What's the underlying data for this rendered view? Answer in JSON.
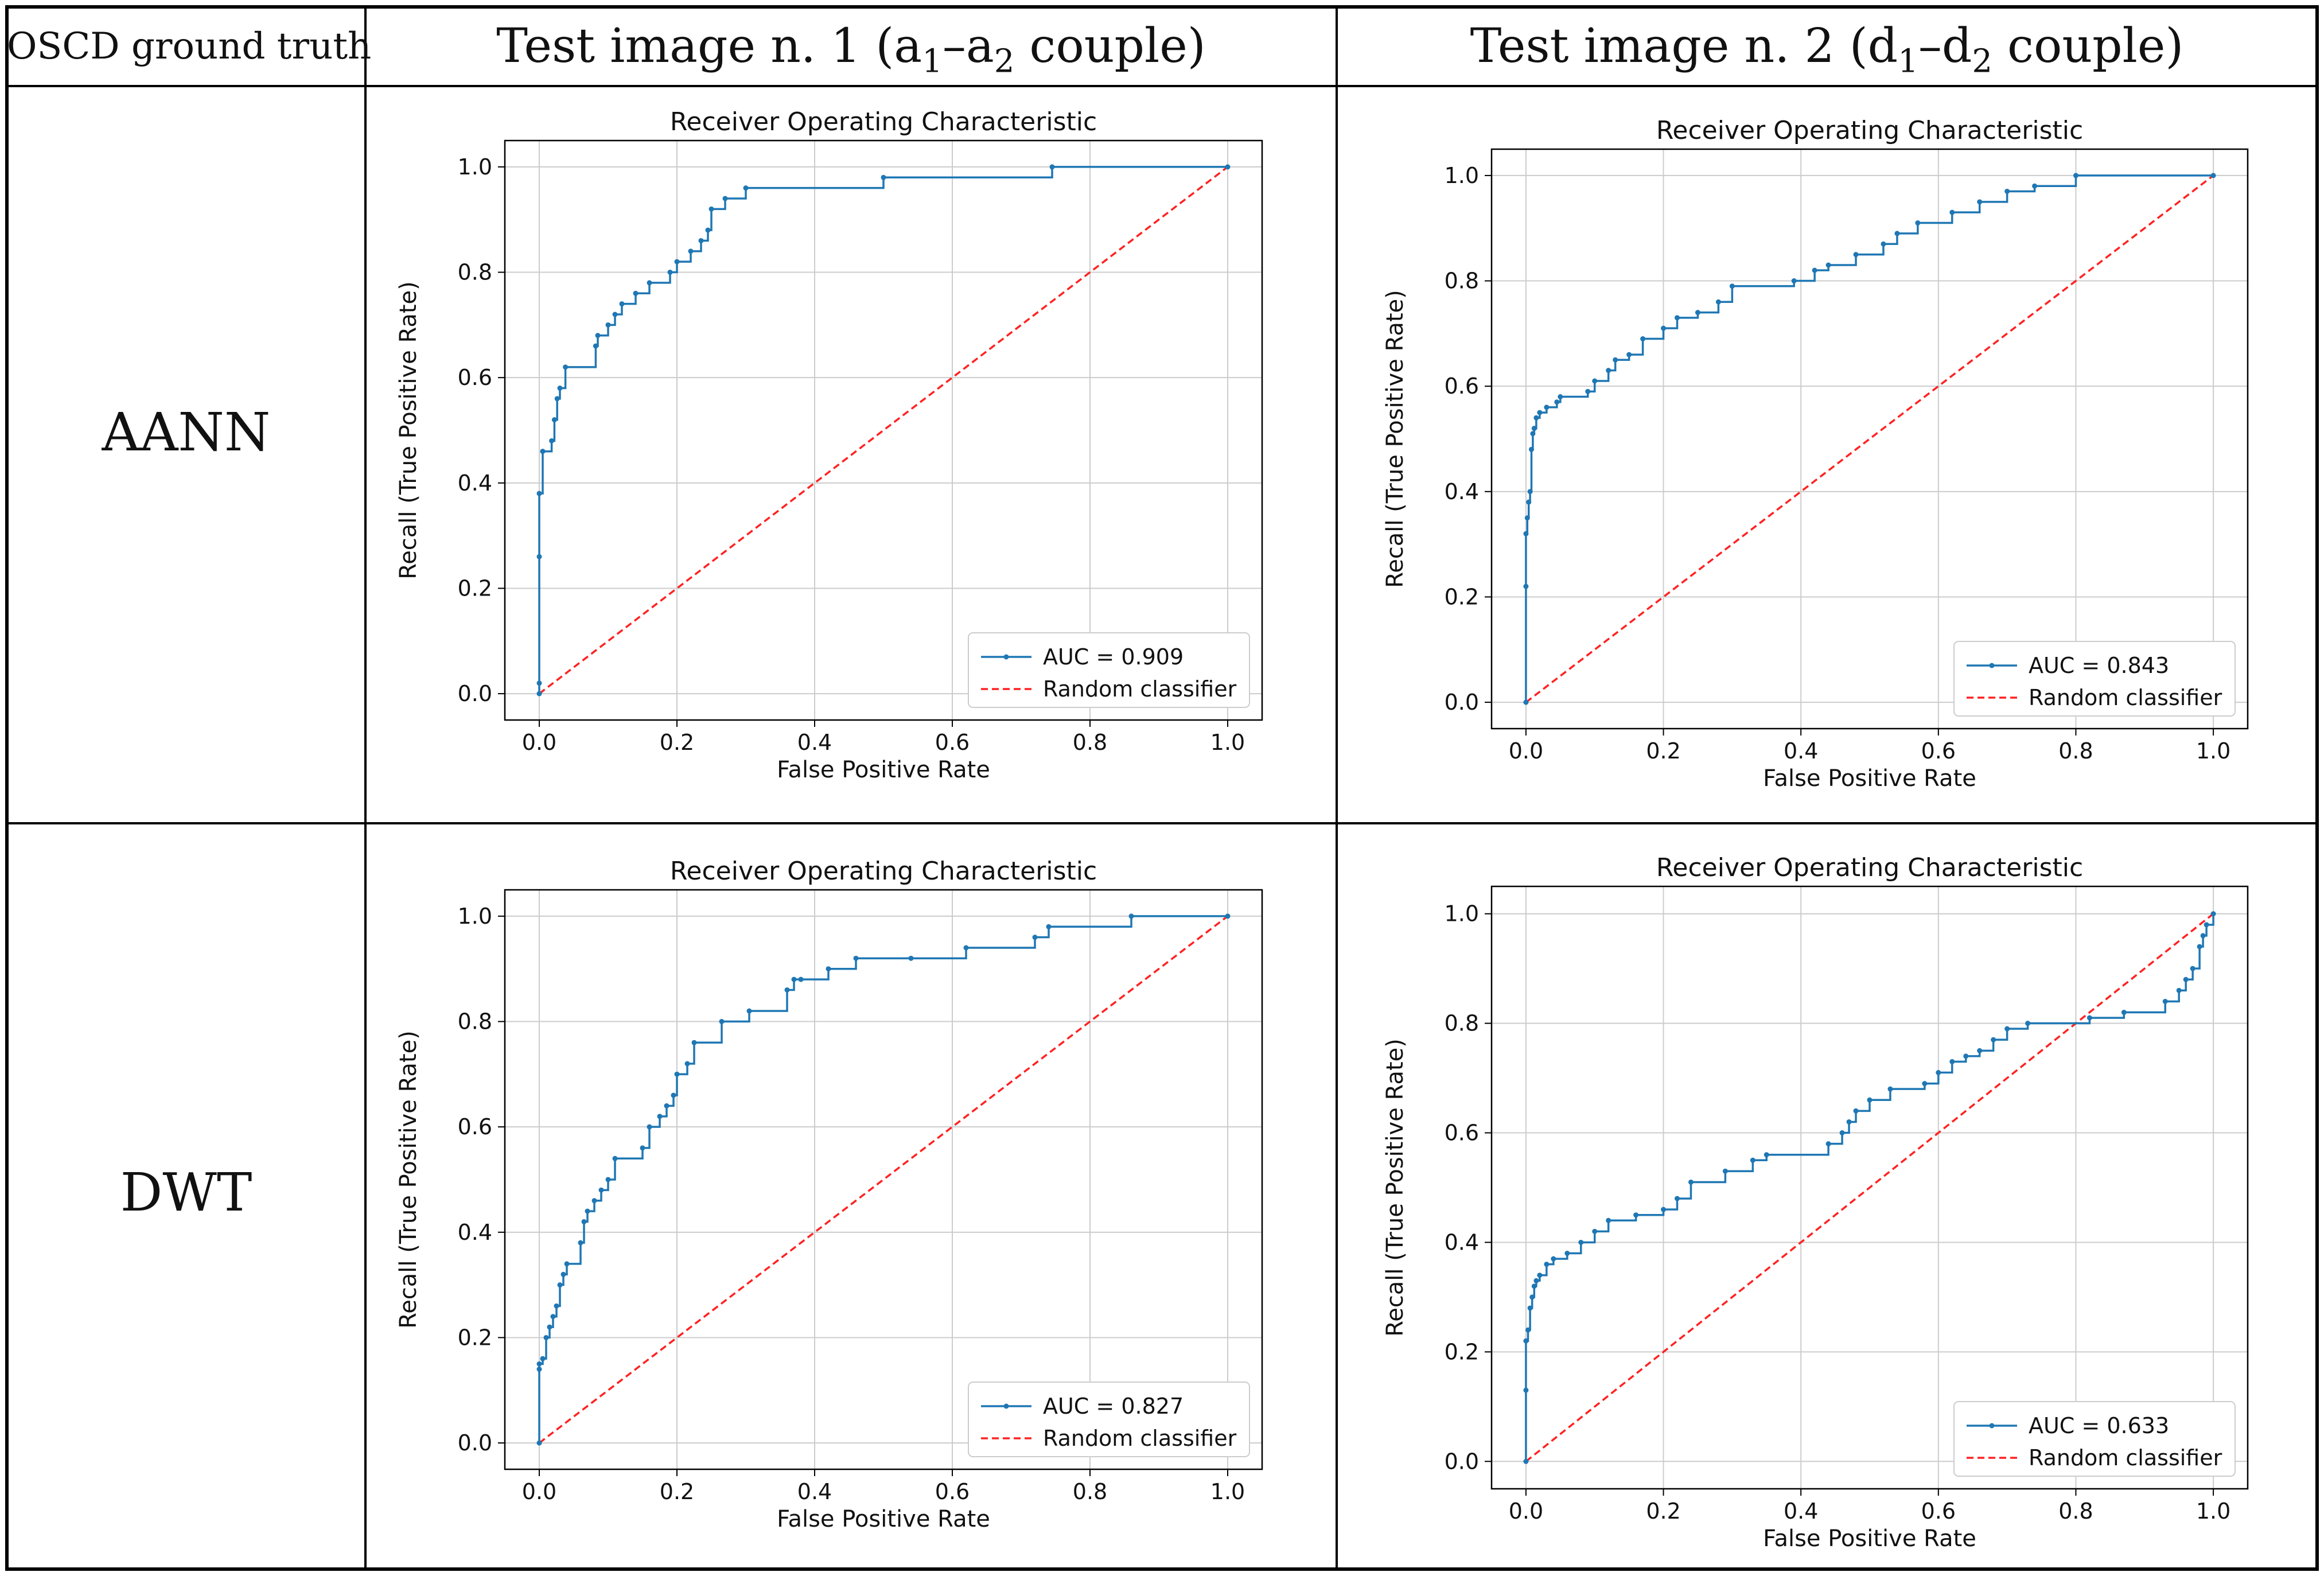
{
  "header": {
    "col0": "OSCD ground truth",
    "col1": {
      "prefix": "Test image n. 1 (a",
      "s1": "1",
      "dash": "–a",
      "s2": "2",
      "suffix": " couple)"
    },
    "col2": {
      "prefix": "Test image n. 2 (d",
      "s1": "1",
      "dash": "–d",
      "s2": "2",
      "suffix": " couple)"
    }
  },
  "rows": [
    "AANN",
    "DWT"
  ],
  "colors": {
    "roc": "#1f77b4",
    "random": "#ff2222",
    "grid": "#cccccc",
    "border": "#000000"
  },
  "chart_data": [
    {
      "type": "line",
      "id": "aann-test1",
      "title": "Receiver Operating Characteristic",
      "xlabel": "False Positive Rate",
      "ylabel": "Recall (True Positive Rate)",
      "xlim": [
        -0.05,
        1.05
      ],
      "ylim": [
        -0.05,
        1.05
      ],
      "xticks": [
        "0.0",
        "0.2",
        "0.4",
        "0.6",
        "0.8",
        "1.0"
      ],
      "yticks": [
        "0.0",
        "0.2",
        "0.4",
        "0.6",
        "0.8",
        "1.0"
      ],
      "grid": true,
      "legend": "bottom-right",
      "series": [
        {
          "name": "AUC = 0.909",
          "style": "step",
          "x": [
            0,
            0,
            0,
            0,
            0.005,
            0.005,
            0.018,
            0.022,
            0.026,
            0.03,
            0.038,
            0.082,
            0.085,
            0.1,
            0.11,
            0.12,
            0.14,
            0.16,
            0.19,
            0.2,
            0.22,
            0.235,
            0.245,
            0.25,
            0.27,
            0.3,
            0.5,
            0.745,
            1.0
          ],
          "y": [
            0,
            0.02,
            0.26,
            0.38,
            0.46,
            0.46,
            0.48,
            0.52,
            0.56,
            0.58,
            0.62,
            0.66,
            0.68,
            0.7,
            0.72,
            0.74,
            0.76,
            0.78,
            0.8,
            0.82,
            0.84,
            0.86,
            0.88,
            0.92,
            0.94,
            0.96,
            0.98,
            1.0,
            1.0
          ]
        },
        {
          "name": "Random classifier",
          "style": "dashed",
          "x": [
            0,
            1
          ],
          "y": [
            0,
            1
          ]
        }
      ]
    },
    {
      "type": "line",
      "id": "aann-test2",
      "title": "Receiver Operating Characteristic",
      "xlabel": "False Positive Rate",
      "ylabel": "Recall (True Positive Rate)",
      "xlim": [
        -0.05,
        1.05
      ],
      "ylim": [
        -0.05,
        1.05
      ],
      "xticks": [
        "0.0",
        "0.2",
        "0.4",
        "0.6",
        "0.8",
        "1.0"
      ],
      "yticks": [
        "0.0",
        "0.2",
        "0.4",
        "0.6",
        "0.8",
        "1.0"
      ],
      "grid": true,
      "legend": "bottom-right",
      "series": [
        {
          "name": "AUC = 0.843",
          "style": "step",
          "x": [
            0,
            0,
            0,
            0.002,
            0.004,
            0.006,
            0.008,
            0.01,
            0.012,
            0.015,
            0.02,
            0.03,
            0.045,
            0.05,
            0.09,
            0.1,
            0.12,
            0.13,
            0.15,
            0.17,
            0.2,
            0.22,
            0.25,
            0.28,
            0.3,
            0.39,
            0.42,
            0.44,
            0.48,
            0.52,
            0.54,
            0.57,
            0.62,
            0.66,
            0.7,
            0.74,
            0.8,
            1.0
          ],
          "y": [
            0,
            0.22,
            0.32,
            0.35,
            0.38,
            0.4,
            0.48,
            0.51,
            0.52,
            0.54,
            0.55,
            0.56,
            0.57,
            0.58,
            0.59,
            0.61,
            0.63,
            0.65,
            0.66,
            0.69,
            0.71,
            0.73,
            0.74,
            0.76,
            0.79,
            0.8,
            0.82,
            0.83,
            0.85,
            0.87,
            0.89,
            0.91,
            0.93,
            0.95,
            0.97,
            0.98,
            1.0,
            1.0
          ]
        },
        {
          "name": "Random classifier",
          "style": "dashed",
          "x": [
            0,
            1
          ],
          "y": [
            0,
            1
          ]
        }
      ]
    },
    {
      "type": "line",
      "id": "dwt-test1",
      "title": "Receiver Operating Characteristic",
      "xlabel": "False Positive Rate",
      "ylabel": "Recall (True Positive Rate)",
      "xlim": [
        -0.05,
        1.05
      ],
      "ylim": [
        -0.05,
        1.05
      ],
      "xticks": [
        "0.0",
        "0.2",
        "0.4",
        "0.6",
        "0.8",
        "1.0"
      ],
      "yticks": [
        "0.0",
        "0.2",
        "0.4",
        "0.6",
        "0.8",
        "1.0"
      ],
      "grid": true,
      "legend": "bottom-right",
      "series": [
        {
          "name": "AUC = 0.827",
          "style": "step",
          "x": [
            0,
            0,
            0,
            0.005,
            0.01,
            0.015,
            0.02,
            0.025,
            0.03,
            0.035,
            0.04,
            0.06,
            0.065,
            0.07,
            0.08,
            0.09,
            0.1,
            0.11,
            0.15,
            0.16,
            0.175,
            0.185,
            0.195,
            0.2,
            0.215,
            0.225,
            0.265,
            0.305,
            0.36,
            0.37,
            0.38,
            0.42,
            0.46,
            0.54,
            0.62,
            0.72,
            0.74,
            0.86,
            1.0
          ],
          "y": [
            0,
            0.14,
            0.15,
            0.16,
            0.2,
            0.22,
            0.24,
            0.26,
            0.3,
            0.32,
            0.34,
            0.38,
            0.42,
            0.44,
            0.46,
            0.48,
            0.5,
            0.54,
            0.56,
            0.6,
            0.62,
            0.64,
            0.66,
            0.7,
            0.72,
            0.76,
            0.8,
            0.82,
            0.86,
            0.88,
            0.88,
            0.9,
            0.92,
            0.92,
            0.94,
            0.96,
            0.98,
            1.0,
            1.0
          ]
        },
        {
          "name": "Random classifier",
          "style": "dashed",
          "x": [
            0,
            1
          ],
          "y": [
            0,
            1
          ]
        }
      ]
    },
    {
      "type": "line",
      "id": "dwt-test2",
      "title": "Receiver Operating Characteristic",
      "xlabel": "False Positive Rate",
      "ylabel": "Recall (True Positive Rate)",
      "xlim": [
        -0.05,
        1.05
      ],
      "ylim": [
        -0.05,
        1.05
      ],
      "xticks": [
        "0.0",
        "0.2",
        "0.4",
        "0.6",
        "0.8",
        "1.0"
      ],
      "yticks": [
        "0.0",
        "0.2",
        "0.4",
        "0.6",
        "0.8",
        "1.0"
      ],
      "grid": true,
      "legend": "bottom-right",
      "series": [
        {
          "name": "AUC = 0.633",
          "style": "step",
          "x": [
            0,
            0,
            0,
            0.003,
            0.006,
            0.009,
            0.012,
            0.015,
            0.02,
            0.03,
            0.04,
            0.06,
            0.08,
            0.1,
            0.12,
            0.16,
            0.2,
            0.22,
            0.24,
            0.29,
            0.33,
            0.35,
            0.44,
            0.46,
            0.47,
            0.48,
            0.5,
            0.53,
            0.58,
            0.6,
            0.62,
            0.64,
            0.66,
            0.68,
            0.7,
            0.73,
            0.82,
            0.87,
            0.93,
            0.95,
            0.96,
            0.97,
            0.98,
            0.985,
            0.99,
            1.0
          ],
          "y": [
            0,
            0.13,
            0.22,
            0.24,
            0.28,
            0.3,
            0.32,
            0.33,
            0.34,
            0.36,
            0.37,
            0.38,
            0.4,
            0.42,
            0.44,
            0.45,
            0.46,
            0.48,
            0.51,
            0.53,
            0.55,
            0.56,
            0.58,
            0.6,
            0.62,
            0.64,
            0.66,
            0.68,
            0.69,
            0.71,
            0.73,
            0.74,
            0.75,
            0.77,
            0.79,
            0.8,
            0.81,
            0.82,
            0.84,
            0.86,
            0.88,
            0.9,
            0.94,
            0.96,
            0.98,
            1.0
          ]
        },
        {
          "name": "Random classifier",
          "style": "dashed",
          "x": [
            0,
            1
          ],
          "y": [
            0,
            1
          ]
        }
      ]
    }
  ]
}
